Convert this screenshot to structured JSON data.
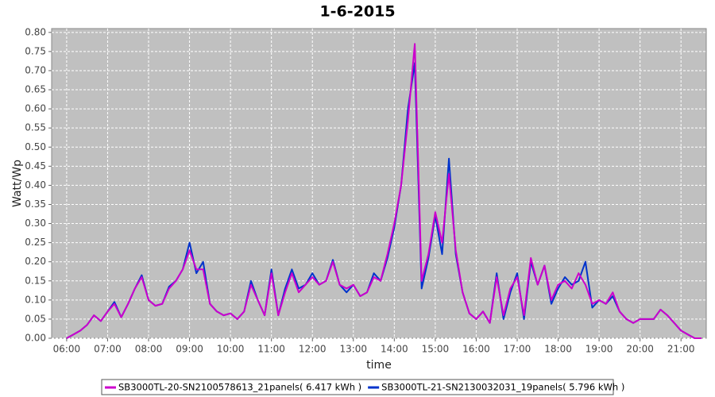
{
  "chart_data": {
    "type": "line",
    "title": "1-6-2015",
    "x_label": "time",
    "y_label": "Watt/Wp",
    "x": [
      "06:00",
      "06:10",
      "06:20",
      "06:30",
      "06:40",
      "06:50",
      "07:00",
      "07:10",
      "07:20",
      "07:30",
      "07:40",
      "07:50",
      "08:00",
      "08:10",
      "08:20",
      "08:30",
      "08:40",
      "08:50",
      "09:00",
      "09:10",
      "09:20",
      "09:30",
      "09:40",
      "09:50",
      "10:00",
      "10:10",
      "10:20",
      "10:30",
      "10:40",
      "10:50",
      "11:00",
      "11:10",
      "11:20",
      "11:30",
      "11:40",
      "11:50",
      "12:00",
      "12:10",
      "12:20",
      "12:30",
      "12:40",
      "12:50",
      "13:00",
      "13:10",
      "13:20",
      "13:30",
      "13:40",
      "13:50",
      "14:00",
      "14:10",
      "14:20",
      "14:30",
      "14:40",
      "14:50",
      "15:00",
      "15:10",
      "15:20",
      "15:30",
      "15:40",
      "15:50",
      "16:00",
      "16:10",
      "16:20",
      "16:30",
      "16:40",
      "16:50",
      "17:00",
      "17:10",
      "17:20",
      "17:30",
      "17:40",
      "17:50",
      "18:00",
      "18:10",
      "18:20",
      "18:30",
      "18:40",
      "18:50",
      "19:00",
      "19:10",
      "19:20",
      "19:30",
      "19:40",
      "19:50",
      "20:00",
      "20:10",
      "20:20",
      "20:30",
      "20:40",
      "20:50",
      "21:00",
      "21:10",
      "21:20",
      "21:30"
    ],
    "series": [
      {
        "name": "SB3000TL-20-SN2100578613_21panels( 6.417 kWh )",
        "color": "#cc00cc",
        "values": [
          0.0,
          0.01,
          0.02,
          0.035,
          0.06,
          0.045,
          0.07,
          0.09,
          0.055,
          0.09,
          0.13,
          0.16,
          0.1,
          0.085,
          0.09,
          0.13,
          0.15,
          0.18,
          0.23,
          0.18,
          0.18,
          0.09,
          0.07,
          0.06,
          0.065,
          0.05,
          0.07,
          0.14,
          0.1,
          0.06,
          0.17,
          0.06,
          0.12,
          0.17,
          0.12,
          0.14,
          0.16,
          0.14,
          0.15,
          0.2,
          0.14,
          0.13,
          0.14,
          0.11,
          0.12,
          0.16,
          0.15,
          0.22,
          0.3,
          0.4,
          0.57,
          0.77,
          0.15,
          0.22,
          0.33,
          0.25,
          0.43,
          0.23,
          0.12,
          0.065,
          0.05,
          0.07,
          0.04,
          0.16,
          0.06,
          0.13,
          0.16,
          0.06,
          0.21,
          0.14,
          0.19,
          0.1,
          0.14,
          0.15,
          0.13,
          0.17,
          0.14,
          0.09,
          0.1,
          0.09,
          0.12,
          0.07,
          0.05,
          0.04,
          0.05,
          0.05,
          0.05,
          0.075,
          0.06,
          0.04,
          0.02,
          0.01,
          0.0,
          0.0
        ]
      },
      {
        "name": "SB3000TL-21-SN2130032031_19panels( 5.796 kWh )",
        "color": "#0033cc",
        "values": [
          0.0,
          0.01,
          0.02,
          0.035,
          0.06,
          0.045,
          0.07,
          0.095,
          0.055,
          0.09,
          0.13,
          0.165,
          0.1,
          0.085,
          0.09,
          0.135,
          0.15,
          0.18,
          0.25,
          0.17,
          0.2,
          0.09,
          0.07,
          0.06,
          0.065,
          0.05,
          0.07,
          0.15,
          0.1,
          0.06,
          0.18,
          0.06,
          0.13,
          0.18,
          0.13,
          0.14,
          0.17,
          0.14,
          0.15,
          0.205,
          0.14,
          0.12,
          0.14,
          0.11,
          0.12,
          0.17,
          0.15,
          0.21,
          0.29,
          0.4,
          0.6,
          0.72,
          0.13,
          0.21,
          0.32,
          0.22,
          0.47,
          0.22,
          0.12,
          0.065,
          0.05,
          0.07,
          0.04,
          0.17,
          0.05,
          0.12,
          0.17,
          0.05,
          0.2,
          0.14,
          0.19,
          0.09,
          0.13,
          0.16,
          0.14,
          0.15,
          0.2,
          0.08,
          0.1,
          0.09,
          0.11,
          0.07,
          0.05,
          0.04,
          0.05,
          0.05,
          0.05,
          0.075,
          0.06,
          0.04,
          0.02,
          0.01,
          0.0,
          0.0
        ]
      }
    ],
    "xlim": [
      "05:38",
      "21:37"
    ],
    "xticks": [
      "06:00",
      "07:00",
      "08:00",
      "09:00",
      "10:00",
      "11:00",
      "12:00",
      "13:00",
      "14:00",
      "15:00",
      "16:00",
      "17:00",
      "18:00",
      "19:00",
      "20:00",
      "21:00"
    ],
    "ylim": [
      0,
      0.81
    ],
    "yticks": [
      {
        "value": 0,
        "label": "0.00"
      },
      {
        "value": 0.05,
        "label": "0.05"
      },
      {
        "value": 0.1,
        "label": "0.10"
      },
      {
        "value": 0.15,
        "label": "0.15"
      },
      {
        "value": 0.2,
        "label": "0.20"
      },
      {
        "value": 0.25,
        "label": "0.25"
      },
      {
        "value": 0.3,
        "label": "0.30"
      },
      {
        "value": 0.35,
        "label": "0.35"
      },
      {
        "value": 0.4,
        "label": "0.40"
      },
      {
        "value": 0.45,
        "label": "0.45"
      },
      {
        "value": 0.5,
        "label": "0.50"
      },
      {
        "value": 0.55,
        "label": "0.55"
      },
      {
        "value": 0.6,
        "label": "0.60"
      },
      {
        "value": 0.65,
        "label": "0.65"
      },
      {
        "value": 0.7,
        "label": "0.70"
      },
      {
        "value": 0.75,
        "label": "0.75"
      },
      {
        "value": 0.8,
        "label": "0.80"
      }
    ],
    "grid": true,
    "legend": "bottom"
  }
}
